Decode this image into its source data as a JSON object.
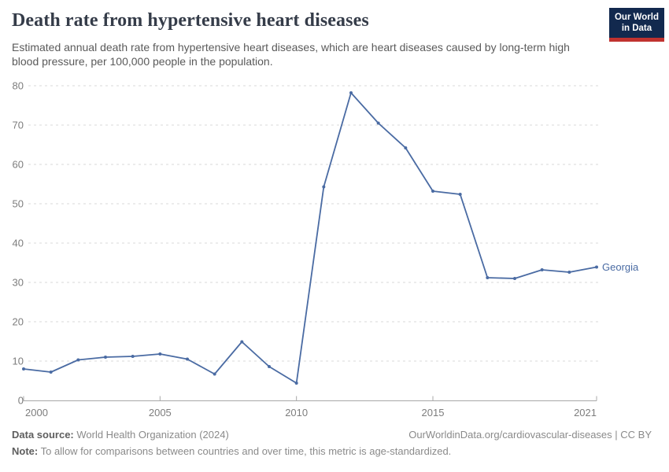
{
  "header": {
    "title": "Death rate from hypertensive heart diseases",
    "subtitle": "Estimated annual death rate from hypertensive heart diseases, which are heart diseases caused by long-term high blood pressure, per 100,000 people in the population.",
    "logo_line1": "Our World",
    "logo_line2": "in Data"
  },
  "chart_data": {
    "type": "line",
    "title": "Death rate from hypertensive heart diseases",
    "xlabel": "",
    "ylabel": "",
    "xlim": [
      2000,
      2021
    ],
    "ylim": [
      0,
      80
    ],
    "x_ticks": [
      2000,
      2005,
      2010,
      2015,
      2021
    ],
    "y_ticks": [
      0,
      10,
      20,
      30,
      40,
      50,
      60,
      70,
      80
    ],
    "grid": "horizontal-dashed",
    "legend_position": "end-of-line-label",
    "x": [
      2000,
      2001,
      2002,
      2003,
      2004,
      2005,
      2006,
      2007,
      2008,
      2009,
      2010,
      2011,
      2012,
      2013,
      2014,
      2015,
      2016,
      2017,
      2018,
      2019,
      2020,
      2021
    ],
    "series": [
      {
        "name": "Georgia",
        "color": "#4a6ba3",
        "values": [
          8.0,
          7.2,
          10.3,
          11.0,
          11.2,
          11.8,
          10.5,
          6.7,
          14.9,
          8.6,
          4.4,
          54.3,
          78.2,
          70.5,
          64.2,
          53.2,
          52.4,
          31.2,
          31.0,
          33.2,
          32.6,
          33.9
        ]
      }
    ]
  },
  "footer": {
    "source_label": "Data source:",
    "source_text": " World Health Organization (2024)",
    "link_text": "OurWorldinData.org/cardiovascular-diseases | CC BY",
    "note_label": "Note:",
    "note_text": " To allow for comparisons between countries and over time, this metric is age-standardized."
  },
  "colors": {
    "line": "#4a6ba3",
    "grid": "#d9d9d9",
    "axis": "#a8a8a8",
    "tick_label": "#7d7d7d",
    "title": "#353c49",
    "subtitle": "#5a5a5a",
    "logo_bg": "#12294e",
    "logo_accent": "#c0322f"
  }
}
